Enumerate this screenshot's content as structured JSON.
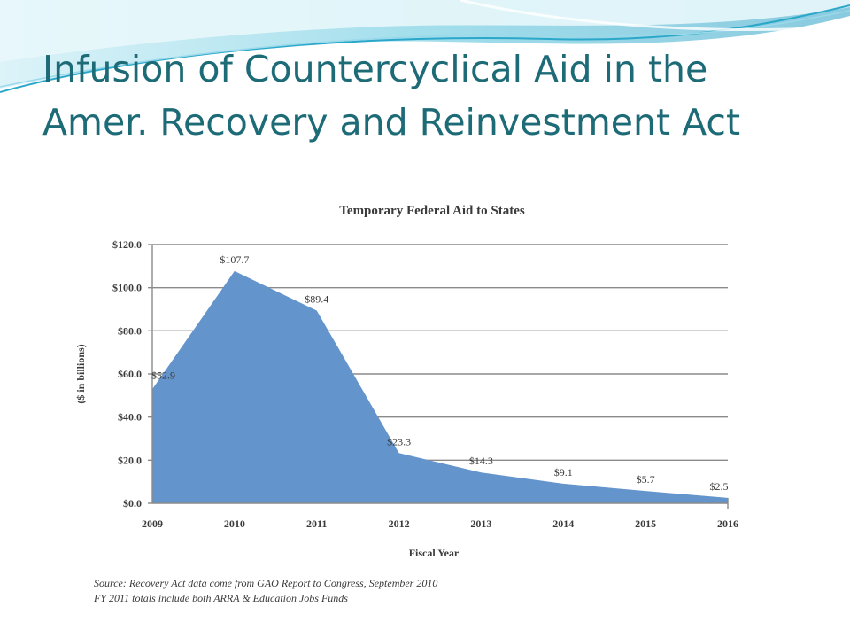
{
  "slide": {
    "title_line1": "Infusion of Countercyclical Aid in the",
    "title_line2": "Amer. Recovery and Reinvestment Act",
    "title_color": "#1d6b77"
  },
  "chart_data": {
    "type": "area",
    "title": "Temporary Federal Aid to States",
    "xlabel": "Fiscal Year",
    "ylabel": "($ in billions)",
    "categories": [
      "2009",
      "2010",
      "2011",
      "2012",
      "2013",
      "2014",
      "2015",
      "2016"
    ],
    "values": [
      52.9,
      107.7,
      89.4,
      23.3,
      14.3,
      9.1,
      5.7,
      2.5
    ],
    "value_labels": [
      "$52.9",
      "$107.7",
      "$89.4",
      "$23.3",
      "$14.3",
      "$9.1",
      "$5.7",
      "$2.5"
    ],
    "ylim": [
      0,
      120
    ],
    "yticks": [
      0,
      20,
      40,
      60,
      80,
      100,
      120
    ],
    "ytick_labels": [
      "$0.0",
      "$20.0",
      "$40.0",
      "$60.0",
      "$80.0",
      "$100.0",
      "$120.0"
    ],
    "grid": true,
    "legend": "none",
    "fill_color": "#6494cc",
    "source_lines": [
      "Source: Recovery Act data come from GAO Report to Congress, September 2010",
      "FY 2011 totals include both ARRA & Education Jobs Funds"
    ]
  }
}
